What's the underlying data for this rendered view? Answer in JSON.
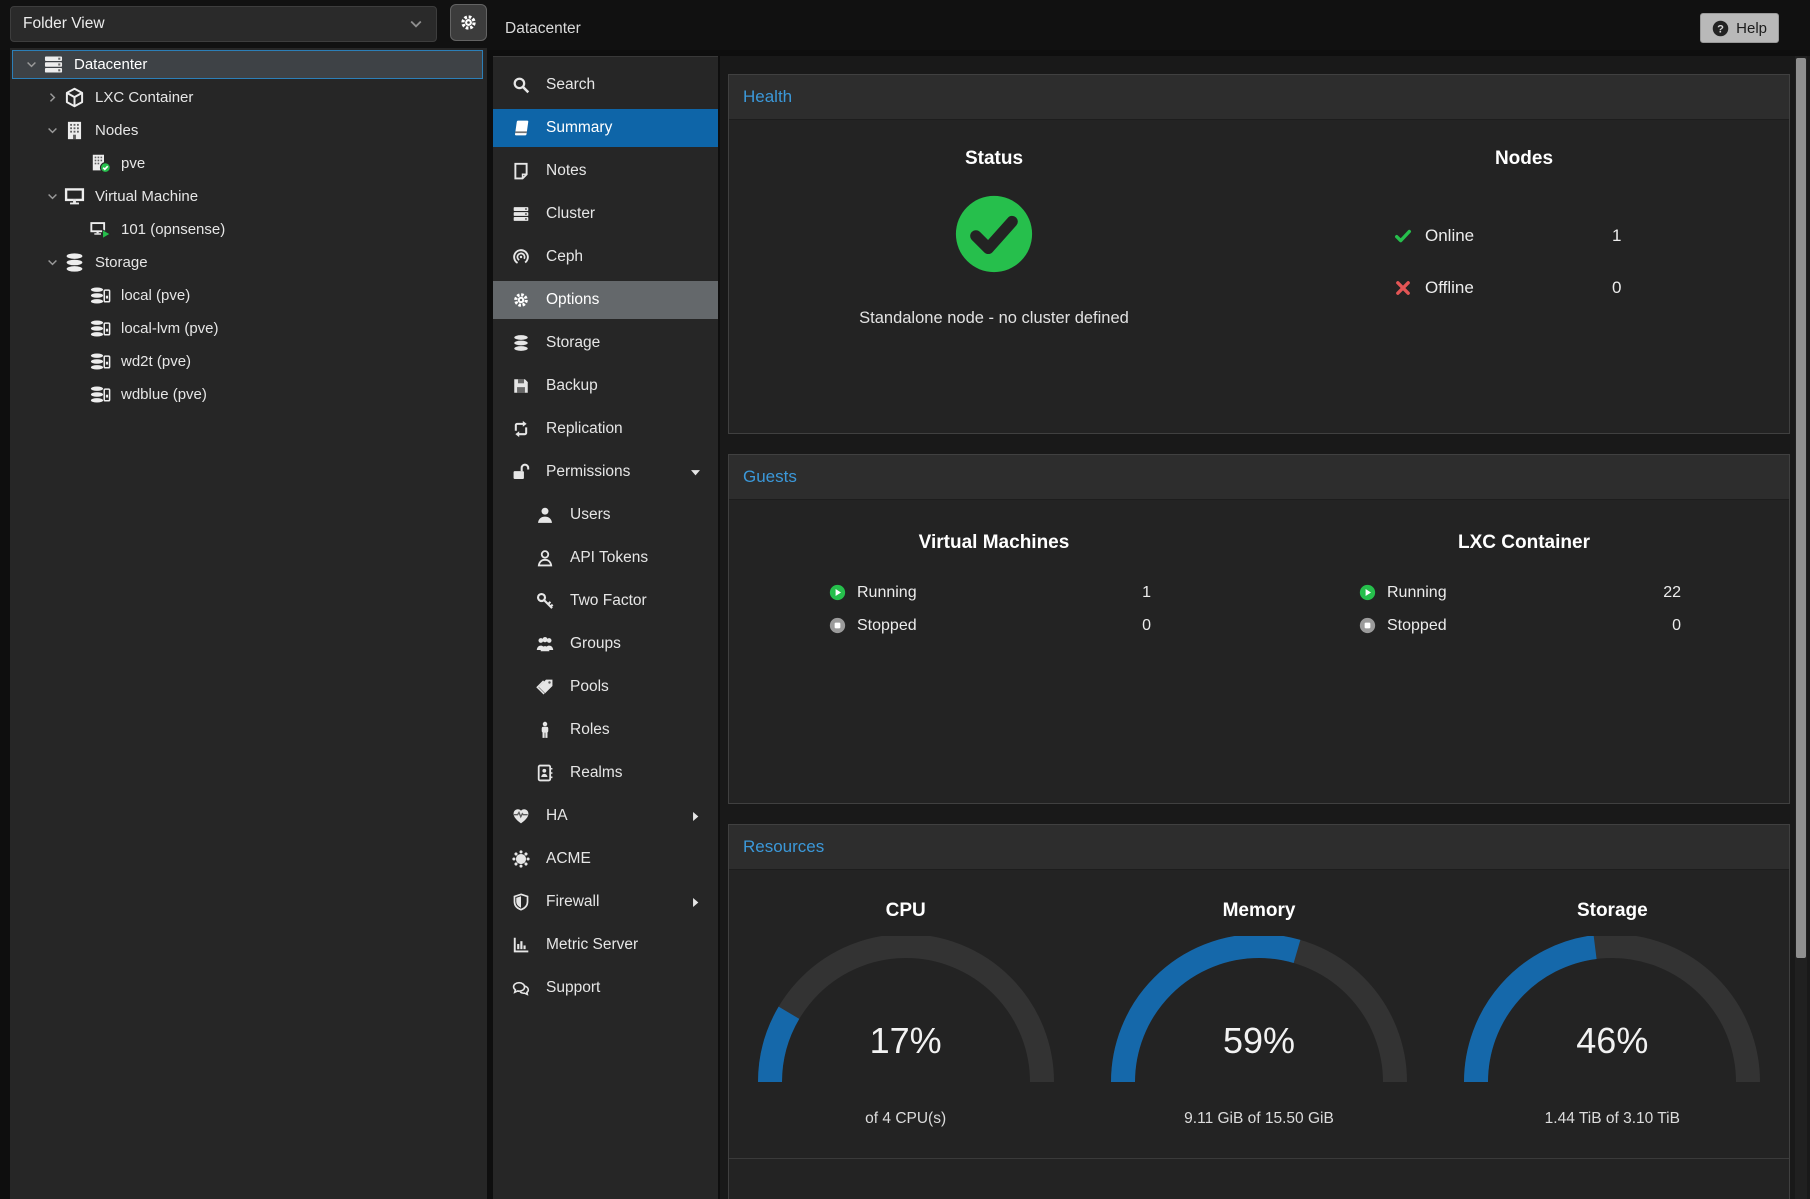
{
  "topbar": {
    "title": "Datacenter",
    "help_label": "Help",
    "help_icon": "question",
    "gear_icon": "gear",
    "combo_chevron_icon": "chevron-down"
  },
  "sidebar": {
    "view_selector": "Folder View",
    "tree": [
      {
        "label": "Datacenter",
        "icon": "server-stack",
        "expander": "chevron-down",
        "selected": true
      },
      {
        "label": "LXC Container",
        "icon": "cube",
        "expander": "chevron-right"
      },
      {
        "label": "Nodes",
        "icon": "building",
        "expander": "chevron-down"
      },
      {
        "label": "pve",
        "icon": "building-check"
      },
      {
        "label": "Virtual Machine",
        "icon": "monitor",
        "expander": "chevron-down"
      },
      {
        "label": "101 (opnsense)",
        "icon": "monitor-play"
      },
      {
        "label": "Storage",
        "icon": "database",
        "expander": "chevron-down"
      },
      {
        "label": "local (pve)",
        "icon": "database-drive"
      },
      {
        "label": "local-lvm (pve)",
        "icon": "database-drive"
      },
      {
        "label": "wd2t (pve)",
        "icon": "database-drive"
      },
      {
        "label": "wdblue (pve)",
        "icon": "database-drive"
      }
    ]
  },
  "menu": {
    "items": [
      {
        "label": "Search",
        "icon": "search"
      },
      {
        "label": "Summary",
        "icon": "book",
        "selected": true
      },
      {
        "label": "Notes",
        "icon": "note"
      },
      {
        "label": "Cluster",
        "icon": "server-stack"
      },
      {
        "label": "Ceph",
        "icon": "ceph"
      },
      {
        "label": "Options",
        "icon": "gear",
        "hovered": true
      },
      {
        "label": "Storage",
        "icon": "database"
      },
      {
        "label": "Backup",
        "icon": "floppy"
      },
      {
        "label": "Replication",
        "icon": "replication"
      },
      {
        "label": "Permissions",
        "icon": "unlock",
        "caret": "caret-down"
      },
      {
        "label": "Users",
        "icon": "user"
      },
      {
        "label": "API Tokens",
        "icon": "user-o"
      },
      {
        "label": "Two Factor",
        "icon": "key"
      },
      {
        "label": "Groups",
        "icon": "group"
      },
      {
        "label": "Pools",
        "icon": "tags"
      },
      {
        "label": "Roles",
        "icon": "role"
      },
      {
        "label": "Realms",
        "icon": "addressbook"
      },
      {
        "label": "HA",
        "icon": "ha",
        "caret": "caret-right"
      },
      {
        "label": "ACME",
        "icon": "acme"
      },
      {
        "label": "Firewall",
        "icon": "shield",
        "caret": "caret-right"
      },
      {
        "label": "Metric Server",
        "icon": "chart-bar"
      },
      {
        "label": "Support",
        "icon": "comments"
      }
    ]
  },
  "health": {
    "title": "Health",
    "status": {
      "heading": "Status",
      "icon": "status-check",
      "message": "Standalone node - no cluster defined"
    },
    "nodes": {
      "heading": "Nodes",
      "rows": [
        {
          "label": "Online",
          "value": "1",
          "icon": "check"
        },
        {
          "label": "Offline",
          "value": "0",
          "icon": "cross"
        }
      ]
    }
  },
  "guests": {
    "title": "Guests",
    "columns": [
      {
        "heading": "Virtual Machines",
        "rows": [
          {
            "label": "Running",
            "value": "1",
            "icon": "play-circle"
          },
          {
            "label": "Stopped",
            "value": "0",
            "icon": "stop-circle"
          }
        ]
      },
      {
        "heading": "LXC Container",
        "rows": [
          {
            "label": "Running",
            "value": "22",
            "icon": "play-circle"
          },
          {
            "label": "Stopped",
            "value": "0",
            "icon": "stop-circle"
          }
        ]
      }
    ]
  },
  "resources": {
    "title": "Resources",
    "gauges": [
      {
        "title": "CPU",
        "percent": 17,
        "percent_label": "17%",
        "sublabel": "of 4 CPU(s)"
      },
      {
        "title": "Memory",
        "percent": 59,
        "percent_label": "59%",
        "sublabel": "9.11 GiB of 15.50 GiB"
      },
      {
        "title": "Storage",
        "percent": 46,
        "percent_label": "46%",
        "sublabel": "1.44 TiB of 3.10 TiB"
      }
    ]
  },
  "colors": {
    "accent_blue": "#3b98d9",
    "selection_blue": "#0e65a8",
    "gauge_blue": "#1568aa",
    "gauge_track": "#333333",
    "status_green": "#26bf4c",
    "status_red": "#e25555"
  }
}
